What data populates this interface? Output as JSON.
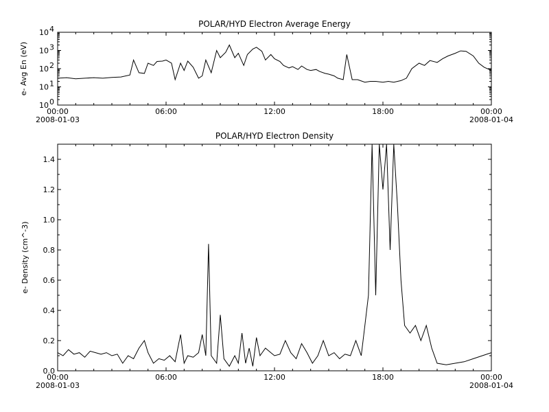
{
  "chart_data": [
    {
      "type": "line",
      "title": "POLAR/HYD  Electron Average Energy",
      "ylabel": "e- Avg En (eV)",
      "yscale": "log",
      "ylim": [
        1,
        10000
      ],
      "y_ticks": [
        {
          "value": 1,
          "base": "10",
          "exp": "0"
        },
        {
          "value": 10,
          "base": "10",
          "exp": "1"
        },
        {
          "value": 100,
          "base": "10",
          "exp": "2"
        },
        {
          "value": 1000,
          "base": "10",
          "exp": "3"
        },
        {
          "value": 10000,
          "base": "10",
          "exp": "4"
        }
      ],
      "xlim_hours": [
        0,
        24
      ],
      "x_ticks": [
        {
          "hour": 0,
          "label": "00:00",
          "date": "2008-01-03"
        },
        {
          "hour": 6,
          "label": "06:00",
          "date": ""
        },
        {
          "hour": 12,
          "label": "12:00",
          "date": ""
        },
        {
          "hour": 18,
          "label": "18:00",
          "date": ""
        },
        {
          "hour": 24,
          "label": "00:00",
          "date": "2008-01-04"
        }
      ],
      "grid": false,
      "series": [
        {
          "x_hours": [
            0.0,
            0.5,
            1.0,
            1.5,
            2.0,
            2.5,
            3.0,
            3.5,
            4.0,
            4.2,
            4.5,
            4.8,
            5.0,
            5.3,
            5.5,
            5.8,
            6.0,
            6.3,
            6.5,
            6.8,
            7.0,
            7.2,
            7.5,
            7.8,
            8.0,
            8.2,
            8.5,
            8.8,
            9.0,
            9.3,
            9.5,
            9.8,
            10.0,
            10.3,
            10.5,
            10.8,
            11.0,
            11.3,
            11.5,
            11.8,
            12.0,
            12.3,
            12.5,
            12.8,
            13.0,
            13.3,
            13.5,
            13.8,
            14.0,
            14.3,
            14.5,
            14.8,
            15.0,
            15.3,
            15.5,
            15.8,
            16.0,
            16.3,
            16.6,
            17.0,
            17.3,
            17.6,
            18.0,
            18.3,
            18.6,
            19.0,
            19.3,
            19.6,
            20.0,
            20.3,
            20.6,
            21.0,
            21.3,
            21.6,
            22.0,
            22.3,
            22.6,
            23.0,
            23.3,
            23.6,
            24.0
          ],
          "y": [
            30,
            32,
            28,
            30,
            32,
            30,
            33,
            35,
            45,
            300,
            60,
            55,
            200,
            150,
            250,
            260,
            300,
            200,
            25,
            200,
            80,
            260,
            120,
            30,
            40,
            300,
            60,
            1000,
            400,
            800,
            2000,
            400,
            700,
            150,
            600,
            1200,
            1500,
            900,
            300,
            600,
            350,
            250,
            150,
            110,
            130,
            90,
            140,
            90,
            80,
            90,
            70,
            55,
            50,
            40,
            30,
            25,
            600,
            25,
            25,
            18,
            20,
            20,
            18,
            20,
            18,
            22,
            30,
            100,
            200,
            150,
            280,
            220,
            350,
            500,
            700,
            950,
            900,
            500,
            200,
            120,
            80
          ]
        }
      ]
    },
    {
      "type": "line",
      "title": "POLAR/HYD  Electron Density",
      "ylabel": "e- Density (cm^-3)",
      "ylim": [
        0,
        1.5
      ],
      "y_ticks": [
        {
          "value": 0.0,
          "label": "0.0"
        },
        {
          "value": 0.2,
          "label": "0.2"
        },
        {
          "value": 0.4,
          "label": "0.4"
        },
        {
          "value": 0.6,
          "label": "0.6"
        },
        {
          "value": 0.8,
          "label": "0.8"
        },
        {
          "value": 1.0,
          "label": "1.0"
        },
        {
          "value": 1.2,
          "label": "1.2"
        },
        {
          "value": 1.4,
          "label": "1.4"
        }
      ],
      "xlim_hours": [
        0,
        24
      ],
      "x_ticks": [
        {
          "hour": 0,
          "label": "00:00",
          "date": "2008-01-03"
        },
        {
          "hour": 6,
          "label": "06:00",
          "date": ""
        },
        {
          "hour": 12,
          "label": "12:00",
          "date": ""
        },
        {
          "hour": 18,
          "label": "18:00",
          "date": ""
        },
        {
          "hour": 24,
          "label": "00:00",
          "date": "2008-01-04"
        }
      ],
      "grid": false,
      "series": [
        {
          "x_hours": [
            0.0,
            0.3,
            0.6,
            0.9,
            1.2,
            1.5,
            1.8,
            2.1,
            2.4,
            2.7,
            3.0,
            3.3,
            3.6,
            3.9,
            4.2,
            4.5,
            4.8,
            5.0,
            5.3,
            5.6,
            5.9,
            6.2,
            6.5,
            6.8,
            7.0,
            7.2,
            7.5,
            7.8,
            8.0,
            8.2,
            8.35,
            8.5,
            8.8,
            9.0,
            9.2,
            9.5,
            9.8,
            10.0,
            10.2,
            10.4,
            10.6,
            10.8,
            11.0,
            11.2,
            11.5,
            11.8,
            12.0,
            12.3,
            12.6,
            12.9,
            13.2,
            13.5,
            13.8,
            14.1,
            14.4,
            14.7,
            15.0,
            15.3,
            15.6,
            15.9,
            16.2,
            16.5,
            16.8,
            17.0,
            17.2,
            17.4,
            17.6,
            17.8,
            18.0,
            18.2,
            18.4,
            18.6,
            18.8,
            19.0,
            19.2,
            19.5,
            19.8,
            20.1,
            20.4,
            20.7,
            21.0,
            21.5,
            22.0,
            22.5,
            23.0,
            23.5,
            24.0
          ],
          "y": [
            0.12,
            0.1,
            0.14,
            0.11,
            0.12,
            0.09,
            0.13,
            0.12,
            0.11,
            0.12,
            0.1,
            0.11,
            0.05,
            0.1,
            0.08,
            0.15,
            0.2,
            0.12,
            0.05,
            0.08,
            0.07,
            0.1,
            0.06,
            0.24,
            0.05,
            0.1,
            0.09,
            0.12,
            0.24,
            0.1,
            0.84,
            0.1,
            0.05,
            0.37,
            0.08,
            0.03,
            0.1,
            0.05,
            0.25,
            0.05,
            0.15,
            0.03,
            0.22,
            0.1,
            0.15,
            0.12,
            0.1,
            0.11,
            0.2,
            0.12,
            0.08,
            0.18,
            0.12,
            0.05,
            0.1,
            0.2,
            0.1,
            0.12,
            0.08,
            0.11,
            0.1,
            0.2,
            0.1,
            0.3,
            0.5,
            1.5,
            0.5,
            1.5,
            1.2,
            1.5,
            0.8,
            1.5,
            1.1,
            0.6,
            0.3,
            0.25,
            0.3,
            0.2,
            0.3,
            0.15,
            0.05,
            0.04,
            0.05,
            0.06,
            0.08,
            0.1,
            0.12
          ]
        }
      ]
    }
  ]
}
